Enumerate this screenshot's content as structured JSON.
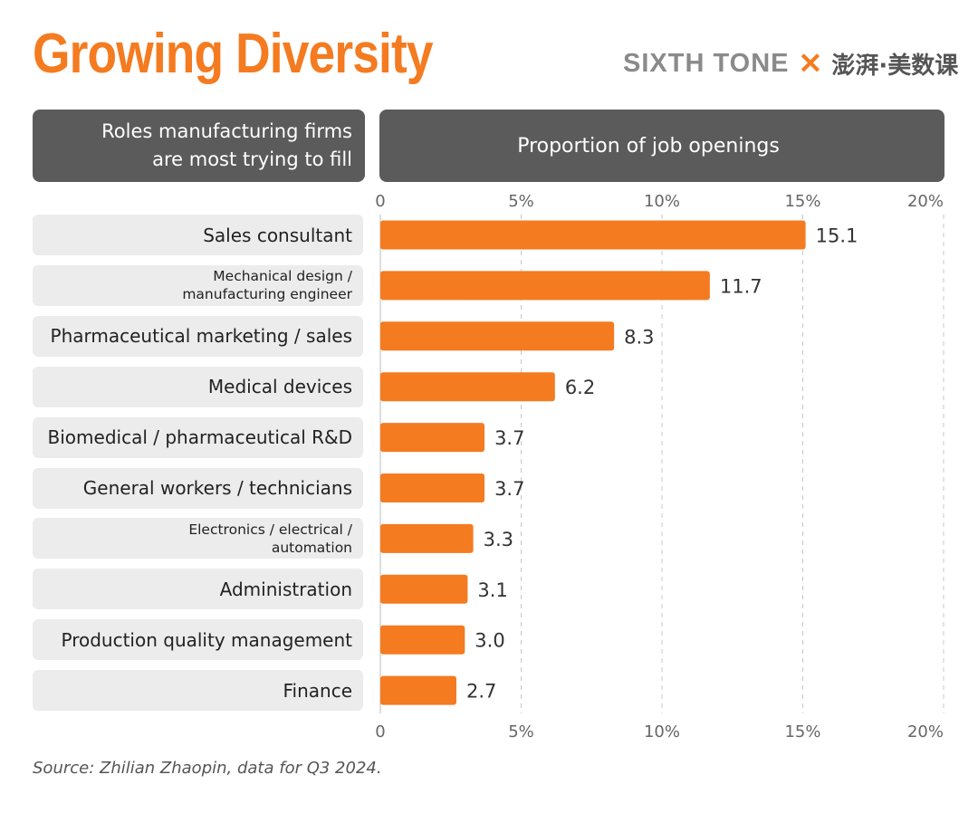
{
  "header": {
    "title": "Growing Diversity",
    "brand_name": "SIXTH TONE",
    "brand_separator": "✕",
    "brand_partner": "澎湃·美数课"
  },
  "panels": {
    "left_header_line1": "Roles manufacturing firms",
    "left_header_line2": "are most trying to fill",
    "right_header": "Proportion of job openings"
  },
  "source": "Source: Zhilian Zhaopin, data for Q3 2024.",
  "colors": {
    "accent": "#f47b20",
    "header_bg": "#5b5b5b",
    "row_bg": "#ececec"
  },
  "chart_data": {
    "type": "bar",
    "orientation": "horizontal",
    "categories": [
      "Sales consultant",
      "Mechanical design / manufacturing engineer",
      "Pharmaceutical marketing / sales",
      "Medical devices",
      "Biomedical / pharmaceutical R&D",
      "General workers / technicians",
      "Electronics / electrical / automation",
      "Administration",
      "Production quality management",
      "Finance"
    ],
    "category_lines": [
      [
        "Sales consultant"
      ],
      [
        "Mechanical design /",
        "manufacturing engineer"
      ],
      [
        "Pharmaceutical marketing / sales"
      ],
      [
        "Medical devices"
      ],
      [
        "Biomedical / pharmaceutical R&D"
      ],
      [
        "General workers / technicians"
      ],
      [
        "Electronics / electrical /",
        "automation"
      ],
      [
        "Administration"
      ],
      [
        "Production quality management"
      ],
      [
        "Finance"
      ]
    ],
    "values": [
      15.1,
      11.7,
      8.3,
      6.2,
      3.7,
      3.7,
      3.3,
      3.1,
      3.0,
      2.7
    ],
    "value_labels": [
      "15.1",
      "11.7",
      "8.3",
      "6.2",
      "3.7",
      "3.7",
      "3.3",
      "3.1",
      "3.0",
      "2.7"
    ],
    "xlim": [
      0,
      20
    ],
    "xticks": [
      0,
      5,
      10,
      15,
      20
    ],
    "xtick_labels": [
      "0",
      "5%",
      "10%",
      "15%",
      "20%"
    ],
    "grid": true,
    "bar_color": "#f47b20"
  }
}
